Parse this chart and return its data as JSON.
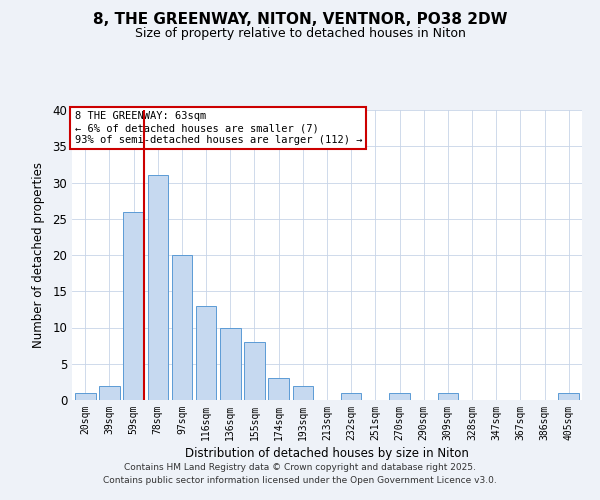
{
  "title": "8, THE GREENWAY, NITON, VENTNOR, PO38 2DW",
  "subtitle": "Size of property relative to detached houses in Niton",
  "xlabel": "Distribution of detached houses by size in Niton",
  "ylabel": "Number of detached properties",
  "bin_labels": [
    "20sqm",
    "39sqm",
    "59sqm",
    "78sqm",
    "97sqm",
    "116sqm",
    "136sqm",
    "155sqm",
    "174sqm",
    "193sqm",
    "213sqm",
    "232sqm",
    "251sqm",
    "270sqm",
    "290sqm",
    "309sqm",
    "328sqm",
    "347sqm",
    "367sqm",
    "386sqm",
    "405sqm"
  ],
  "bar_values": [
    1,
    2,
    26,
    31,
    20,
    13,
    10,
    8,
    3,
    2,
    0,
    1,
    0,
    1,
    0,
    1,
    0,
    0,
    0,
    0,
    1
  ],
  "bar_color": "#c6d9f0",
  "bar_edge_color": "#5b9bd5",
  "vline_color": "#cc0000",
  "ylim": [
    0,
    40
  ],
  "yticks": [
    0,
    5,
    10,
    15,
    20,
    25,
    30,
    35,
    40
  ],
  "annotation_title": "8 THE GREENWAY: 63sqm",
  "annotation_line1": "← 6% of detached houses are smaller (7)",
  "annotation_line2": "93% of semi-detached houses are larger (112) →",
  "annotation_box_color": "#ffffff",
  "annotation_box_edge_color": "#cc0000",
  "footer_line1": "Contains HM Land Registry data © Crown copyright and database right 2025.",
  "footer_line2": "Contains public sector information licensed under the Open Government Licence v3.0.",
  "bg_color": "#eef2f8",
  "plot_bg_color": "#ffffff"
}
